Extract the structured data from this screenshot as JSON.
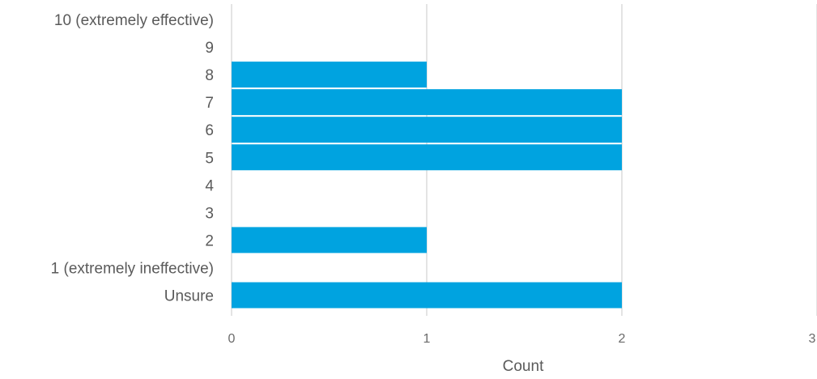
{
  "chart_data": {
    "type": "bar",
    "orientation": "horizontal",
    "categories": [
      "10 (extremely effective)",
      "9",
      "8",
      "7",
      "6",
      "5",
      "4",
      "3",
      "2",
      "1 (extremely ineffective)",
      "Unsure"
    ],
    "values": [
      0,
      0,
      1,
      2,
      2,
      2,
      0,
      0,
      1,
      0,
      2
    ],
    "xlabel": "Count",
    "ylabel": "",
    "xlim": [
      0,
      3
    ],
    "xticks": [
      "0",
      "1",
      "2",
      "3"
    ],
    "grid": "vertical",
    "legend": "none",
    "bar_color": "#00A3E0",
    "grid_color": "#dcdcdc"
  }
}
